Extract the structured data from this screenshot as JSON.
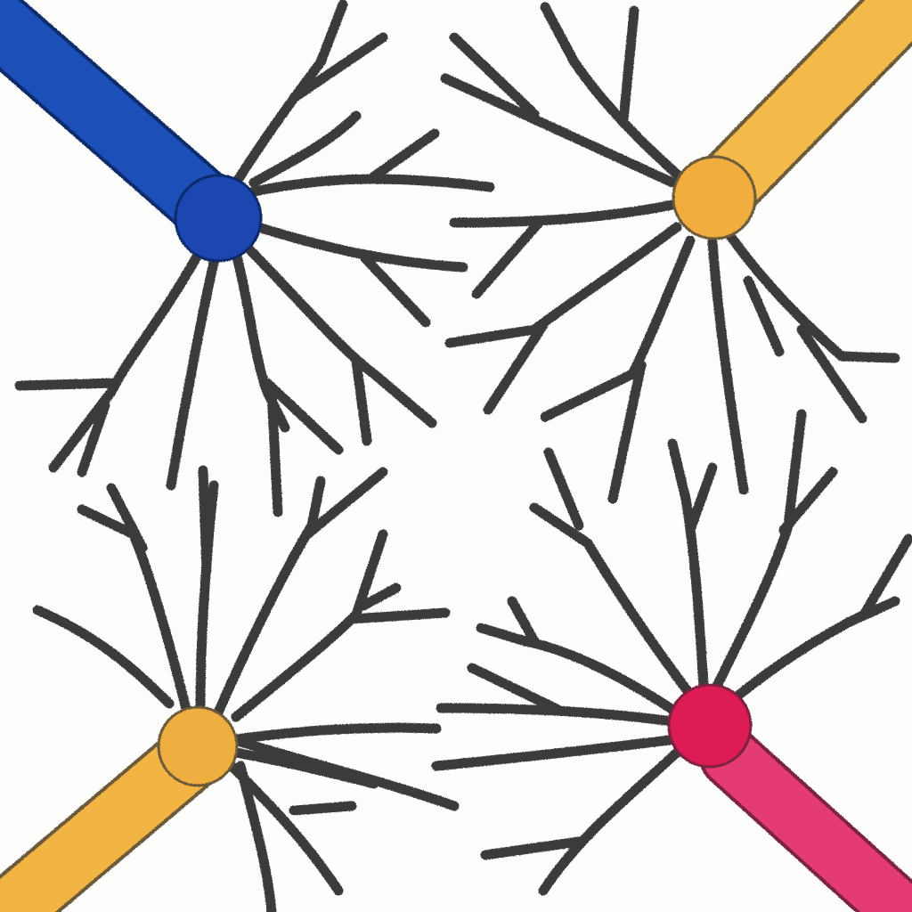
{
  "drawing": {
    "style": "colored-pencil-illustration",
    "background_color": "#fdfdfb",
    "dendrite_color": "#3b3b3b",
    "neurons": [
      {
        "position": "top-left",
        "axon_color": "#1e4fb8",
        "axon_outline": "#0e2a6a",
        "soma_color": "#1a47b0"
      },
      {
        "position": "top-right",
        "axon_color": "#f3b94a",
        "axon_outline": "#6a5a3a",
        "soma_color": "#f1ad3c"
      },
      {
        "position": "bottom-left",
        "axon_color": "#f2b443",
        "axon_outline": "#6a5a3a",
        "soma_color": "#efae3f"
      },
      {
        "position": "bottom-right",
        "axon_color": "#e33a72",
        "axon_outline": "#7a2040",
        "soma_color": "#dd1f55"
      }
    ]
  }
}
